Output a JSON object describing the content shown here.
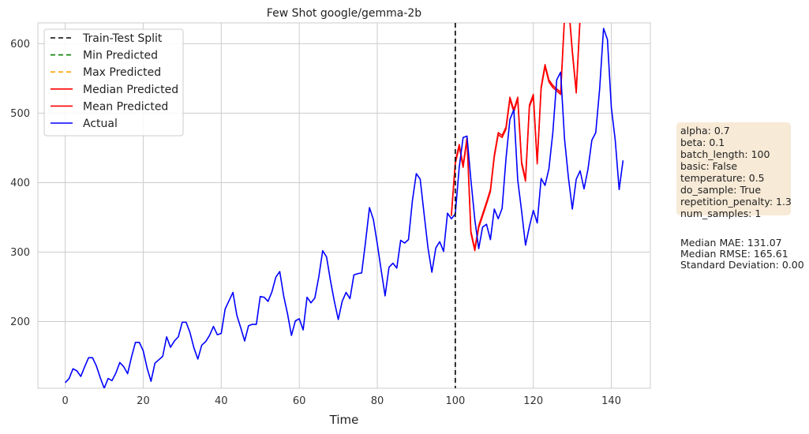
{
  "chart_data": {
    "type": "line",
    "title": "Few Shot google/gemma-2b",
    "xlabel": "Time",
    "ylabel": "",
    "xlim": [
      -7,
      150
    ],
    "ylim": [
      104,
      630
    ],
    "xticks": [
      0,
      20,
      40,
      60,
      80,
      100,
      120,
      140
    ],
    "yticks": [
      200,
      300,
      400,
      500,
      600
    ],
    "grid": true,
    "legend_position": "top-left",
    "split_x": 100,
    "series": [
      {
        "name": "Train-Test Split",
        "style": "dashed",
        "color": "#000000",
        "values": []
      },
      {
        "name": "Min Predicted",
        "style": "dashed",
        "color": "#008000",
        "values": []
      },
      {
        "name": "Max Predicted",
        "style": "dashed",
        "color": "#ffa500",
        "values": []
      },
      {
        "name": "Median Predicted",
        "style": "solid",
        "color": "#ff0000",
        "x_start": 99,
        "values": [
          355,
          430,
          455,
          425,
          465,
          330,
          305,
          338,
          355,
          372,
          390,
          440,
          472,
          468,
          480,
          523,
          505,
          523,
          430,
          405,
          512,
          527,
          430,
          538,
          570,
          548,
          540,
          535,
          530,
          640,
          660,
          590,
          532,
          640
        ]
      },
      {
        "name": "Mean Predicted",
        "style": "solid",
        "color": "#ff0000",
        "x_start": 99,
        "values": [
          352,
          427,
          452,
          422,
          462,
          327,
          302,
          335,
          352,
          369,
          387,
          437,
          469,
          465,
          477,
          520,
          502,
          520,
          427,
          402,
          509,
          524,
          427,
          535,
          567,
          545,
          537,
          532,
          527,
          637,
          657,
          587,
          529,
          637
        ]
      },
      {
        "name": "Actual",
        "style": "solid",
        "color": "#0000ff",
        "x_start": 0,
        "values": [
          112,
          118,
          132,
          129,
          121,
          135,
          148,
          148,
          136,
          119,
          104,
          118,
          115,
          126,
          141,
          135,
          125,
          149,
          170,
          170,
          158,
          133,
          114,
          140,
          145,
          150,
          178,
          163,
          172,
          178,
          199,
          199,
          184,
          162,
          146,
          166,
          171,
          180,
          193,
          181,
          183,
          218,
          230,
          242,
          209,
          191,
          172,
          194,
          196,
          196,
          236,
          235,
          229,
          243,
          264,
          272,
          237,
          211,
          180,
          201,
          204,
          188,
          235,
          227,
          234,
          264,
          302,
          293,
          259,
          229,
          203,
          229,
          242,
          233,
          267,
          269,
          270,
          315,
          364,
          347,
          312,
          274,
          237,
          278,
          284,
          277,
          317,
          313,
          318,
          374,
          413,
          405,
          355,
          306,
          271,
          306,
          315,
          301,
          356,
          348,
          355,
          422,
          465,
          467,
          404,
          347,
          305,
          336,
          340,
          318,
          362,
          348,
          363,
          435,
          491,
          505,
          404,
          359,
          310,
          337,
          360,
          342,
          406,
          396,
          420,
          472,
          548,
          559,
          463,
          407,
          362,
          405,
          417,
          391,
          419,
          461,
          472,
          535,
          622,
          606,
          508,
          461,
          390,
          432
        ]
      }
    ]
  },
  "info_box": {
    "lines": [
      "alpha: 0.7",
      "beta: 0.1",
      "batch_length: 100",
      "basic: False",
      "temperature: 0.5",
      "do_sample: True",
      "repetition_penalty: 1.3",
      "num_samples: 1"
    ]
  },
  "metrics": {
    "lines": [
      "Median MAE: 131.07",
      "Median RMSE: 165.61",
      "Standard Deviation: 0.00"
    ]
  },
  "colors": {
    "background": "#ffffff",
    "grid": "#cccccc",
    "info_box_bg": "#f7ead6"
  }
}
